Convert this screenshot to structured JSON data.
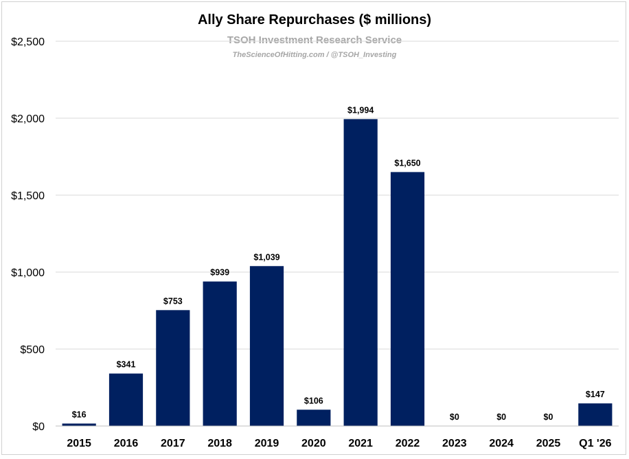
{
  "chart_data": {
    "type": "bar",
    "title": "Ally Share Repurchases ($ millions)",
    "subtitle": "TSOH Investment Research Service",
    "attribution": "TheScienceOfHitting.com / @TSOH_Investing",
    "categories": [
      "2015",
      "2016",
      "2017",
      "2018",
      "2019",
      "2020",
      "2021",
      "2022",
      "2023",
      "2024",
      "2025",
      "Q1 '26"
    ],
    "values": [
      16,
      341,
      753,
      939,
      1039,
      106,
      1994,
      1650,
      0,
      0,
      0,
      147
    ],
    "data_labels": [
      "$16",
      "$341",
      "$753",
      "$939",
      "$1,039",
      "$106",
      "$1,994",
      "$1,650",
      "$0",
      "$0",
      "$0",
      "$147"
    ],
    "ylim": [
      0,
      2500
    ],
    "yticks": [
      0,
      500,
      1000,
      1500,
      2000,
      2500
    ],
    "ytick_labels": [
      "$0",
      "$500",
      "$1,000",
      "$1,500",
      "$2,000",
      "$2,500"
    ],
    "xlabel": "",
    "ylabel": "",
    "grid": true,
    "legend": "none",
    "bar_color": "#002060"
  }
}
